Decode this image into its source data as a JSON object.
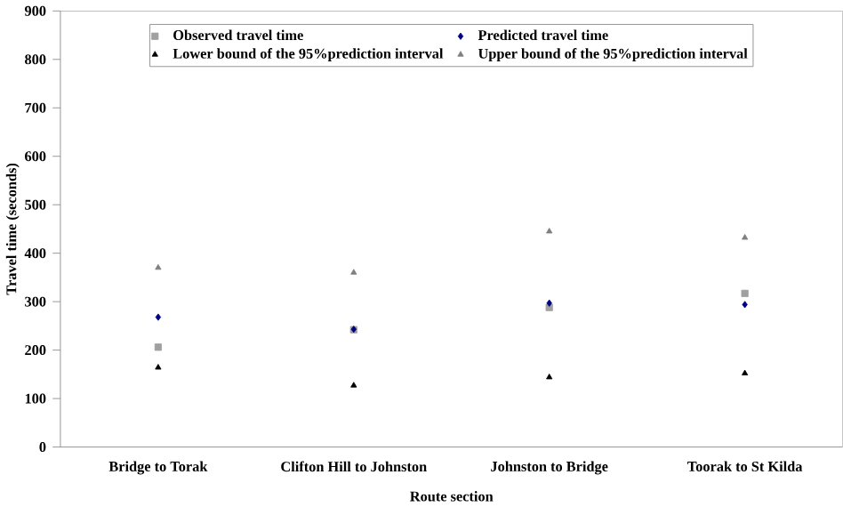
{
  "chart_data": {
    "type": "scatter",
    "xlabel": "Route section",
    "ylabel": "Travel time (seconds)",
    "categories": [
      "Bridge to Torak",
      "Clifton Hill to Johnston",
      "Johnston to Bridge",
      "Toorak to St Kilda"
    ],
    "ylim": [
      0,
      900
    ],
    "yticks": [
      0,
      100,
      200,
      300,
      400,
      500,
      600,
      700,
      800,
      900
    ],
    "legend": "top",
    "grid": false,
    "series": [
      {
        "name": "Observed travel time",
        "color": "#a0a0a0",
        "marker": "square",
        "values": [
          206,
          242,
          288,
          317
        ]
      },
      {
        "name": "Predicted travel time",
        "color": "#000080",
        "marker": "diamond",
        "values": [
          268,
          243,
          297,
          294
        ]
      },
      {
        "name": "Lower bound of the 95%prediction interval",
        "color": "#000000",
        "marker": "triangle",
        "values": [
          164,
          127,
          144,
          152
        ]
      },
      {
        "name": "Upper bound of the 95%prediction interval",
        "color": "#808080",
        "marker": "triangle",
        "values": [
          370,
          360,
          445,
          432
        ]
      }
    ]
  }
}
